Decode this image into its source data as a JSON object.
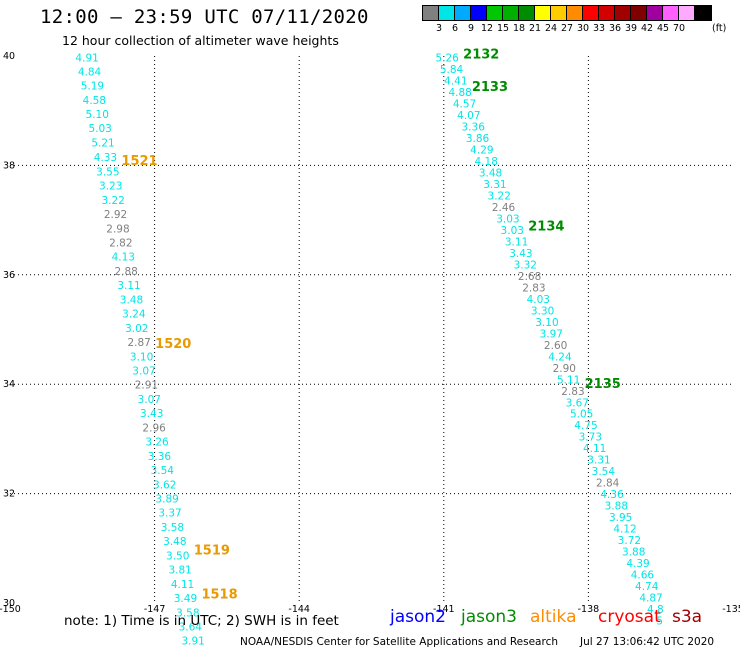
{
  "header": {
    "title": "12:00 – 23:59 UTC 07/11/2020",
    "subtitle": "12 hour collection of altimeter wave heights"
  },
  "legend": {
    "colors": [
      "#808080",
      "#00e5e5",
      "#00aaff",
      "#0000ff",
      "#00c800",
      "#00b000",
      "#008c00",
      "#ffff00",
      "#ffcc00",
      "#ff8c00",
      "#ff0000",
      "#d20000",
      "#a00000",
      "#800000",
      "#a000a0",
      "#ff60ff",
      "#ffaaff",
      "#000000"
    ],
    "labels": [
      "3",
      "6",
      "9",
      "12",
      "15",
      "18",
      "21",
      "24",
      "27",
      "30",
      "33",
      "36",
      "39",
      "42",
      "45",
      "70"
    ],
    "unit": "(ft)"
  },
  "axes": {
    "lon_labels": [
      "-150",
      "-147",
      "-144",
      "-141",
      "-138",
      "-135"
    ],
    "lat_labels": [
      "40",
      "38",
      "36",
      "34",
      "32",
      "30"
    ]
  },
  "tracks": [
    {
      "orbit_labels": [
        {
          "text": "1521",
          "lat": 38.1,
          "color": "#e89a00"
        },
        {
          "text": "1520",
          "lat": 34.75,
          "color": "#e89a00"
        },
        {
          "text": "1519",
          "lat": 30.98,
          "color": "#e89a00"
        },
        {
          "text": "1518",
          "lat": 30.17,
          "color": "#e89a00"
        }
      ],
      "points": [
        {
          "v": "4.91",
          "lon": -148.4,
          "lat": 39.97
        },
        {
          "v": "4.84",
          "lon": -148.35,
          "lat": 39.72
        },
        {
          "v": "5.19",
          "lon": -148.29,
          "lat": 39.46
        },
        {
          "v": "4.58",
          "lon": -148.25,
          "lat": 39.2
        },
        {
          "v": "5.10",
          "lon": -148.19,
          "lat": 38.94
        },
        {
          "v": "5.03",
          "lon": -148.13,
          "lat": 38.68
        },
        {
          "v": "5.21",
          "lon": -148.07,
          "lat": 38.42
        },
        {
          "v": "4.33",
          "lon": -148.02,
          "lat": 38.15
        },
        {
          "v": "3.55",
          "lon": -147.97,
          "lat": 37.89
        },
        {
          "v": "3.23",
          "lon": -147.91,
          "lat": 37.63
        },
        {
          "v": "3.22",
          "lon": -147.86,
          "lat": 37.37
        },
        {
          "v": "2.92",
          "lon": -147.81,
          "lat": 37.11
        },
        {
          "v": "2.98",
          "lon": -147.76,
          "lat": 36.85
        },
        {
          "v": "2.82",
          "lon": -147.7,
          "lat": 36.59
        },
        {
          "v": "4.13",
          "lon": -147.65,
          "lat": 36.33
        },
        {
          "v": "2.88",
          "lon": -147.59,
          "lat": 36.07
        },
        {
          "v": "3.11",
          "lon": -147.53,
          "lat": 35.81
        },
        {
          "v": "3.48",
          "lon": -147.48,
          "lat": 35.55
        },
        {
          "v": "3.24",
          "lon": -147.43,
          "lat": 35.29
        },
        {
          "v": "3.02",
          "lon": -147.37,
          "lat": 35.03
        },
        {
          "v": "2.87",
          "lon": -147.32,
          "lat": 34.77
        },
        {
          "v": "3.10",
          "lon": -147.27,
          "lat": 34.51
        },
        {
          "v": "3.07",
          "lon": -147.22,
          "lat": 34.25
        },
        {
          "v": "2.91",
          "lon": -147.17,
          "lat": 33.99
        },
        {
          "v": "3.07",
          "lon": -147.11,
          "lat": 33.73
        },
        {
          "v": "3.43",
          "lon": -147.06,
          "lat": 33.47
        },
        {
          "v": "2.96",
          "lon": -147.01,
          "lat": 33.21
        },
        {
          "v": "3.26",
          "lon": -146.95,
          "lat": 32.95
        },
        {
          "v": "3.36",
          "lon": -146.9,
          "lat": 32.69
        },
        {
          "v": "3.54",
          "lon": -146.84,
          "lat": 32.43
        },
        {
          "v": "3.62",
          "lon": -146.79,
          "lat": 32.17
        },
        {
          "v": "3.89",
          "lon": -146.74,
          "lat": 31.91
        },
        {
          "v": "3.37",
          "lon": -146.68,
          "lat": 31.65
        },
        {
          "v": "3.58",
          "lon": -146.63,
          "lat": 31.39
        },
        {
          "v": "3.48",
          "lon": -146.58,
          "lat": 31.13
        },
        {
          "v": "3.50",
          "lon": -146.52,
          "lat": 30.87
        },
        {
          "v": "3.81",
          "lon": -146.47,
          "lat": 30.61
        },
        {
          "v": "4.11",
          "lon": -146.42,
          "lat": 30.35
        },
        {
          "v": "3.49",
          "lon": -146.36,
          "lat": 30.09
        },
        {
          "v": "3.58",
          "lon": -146.31,
          "lat": 29.83
        },
        {
          "v": "3.64",
          "lon": -146.26,
          "lat": 29.57
        },
        {
          "v": "3.91",
          "lon": -146.2,
          "lat": 29.31
        }
      ]
    },
    {
      "orbit_labels": [
        {
          "text": "2132",
          "lat": 40.05,
          "color": "#008c00"
        },
        {
          "text": "2133",
          "lat": 39.45,
          "color": "#008c00"
        },
        {
          "text": "2134",
          "lat": 36.9,
          "color": "#008c00"
        },
        {
          "text": "2135",
          "lat": 34.02,
          "color": "#008c00"
        }
      ],
      "points": [
        {
          "v": "5.26",
          "lon": -140.93,
          "lat": 39.97
        },
        {
          "v": "5.84",
          "lon": -140.84,
          "lat": 39.76
        },
        {
          "v": "4.41",
          "lon": -140.75,
          "lat": 39.55
        },
        {
          "v": "4.88",
          "lon": -140.66,
          "lat": 39.34
        },
        {
          "v": "4.57",
          "lon": -140.57,
          "lat": 39.13
        },
        {
          "v": "4.07",
          "lon": -140.48,
          "lat": 38.92
        },
        {
          "v": "3.36",
          "lon": -140.39,
          "lat": 38.71
        },
        {
          "v": "3.86",
          "lon": -140.3,
          "lat": 38.5
        },
        {
          "v": "4.29",
          "lon": -140.21,
          "lat": 38.29
        },
        {
          "v": "4.18",
          "lon": -140.12,
          "lat": 38.08
        },
        {
          "v": "3.48",
          "lon": -140.03,
          "lat": 37.87
        },
        {
          "v": "3.31",
          "lon": -139.94,
          "lat": 37.66
        },
        {
          "v": "3.22",
          "lon": -139.85,
          "lat": 37.45
        },
        {
          "v": "2.46",
          "lon": -139.76,
          "lat": 37.24
        },
        {
          "v": "3.03",
          "lon": -139.67,
          "lat": 37.03
        },
        {
          "v": "3.03",
          "lon": -139.58,
          "lat": 36.82
        },
        {
          "v": "3.11",
          "lon": -139.49,
          "lat": 36.61
        },
        {
          "v": "3.43",
          "lon": -139.4,
          "lat": 36.4
        },
        {
          "v": "3.32",
          "lon": -139.31,
          "lat": 36.19
        },
        {
          "v": "2.68",
          "lon": -139.22,
          "lat": 35.98
        },
        {
          "v": "2.83",
          "lon": -139.13,
          "lat": 35.77
        },
        {
          "v": "4.03",
          "lon": -139.04,
          "lat": 35.56
        },
        {
          "v": "3.30",
          "lon": -138.95,
          "lat": 35.35
        },
        {
          "v": "3.10",
          "lon": -138.86,
          "lat": 35.14
        },
        {
          "v": "3.97",
          "lon": -138.77,
          "lat": 34.93
        },
        {
          "v": "2.60",
          "lon": -138.68,
          "lat": 34.72
        },
        {
          "v": "4.24",
          "lon": -138.59,
          "lat": 34.51
        },
        {
          "v": "2.90",
          "lon": -138.5,
          "lat": 34.3
        },
        {
          "v": "5.11",
          "lon": -138.41,
          "lat": 34.09
        },
        {
          "v": "2.83",
          "lon": -138.32,
          "lat": 33.88
        },
        {
          "v": "3.67",
          "lon": -138.23,
          "lat": 33.67
        },
        {
          "v": "5.05",
          "lon": -138.14,
          "lat": 33.46
        },
        {
          "v": "4.75",
          "lon": -138.05,
          "lat": 33.25
        },
        {
          "v": "3.73",
          "lon": -137.96,
          "lat": 33.04
        },
        {
          "v": "4.11",
          "lon": -137.87,
          "lat": 32.83
        },
        {
          "v": "3.31",
          "lon": -137.78,
          "lat": 32.62
        },
        {
          "v": "3.54",
          "lon": -137.69,
          "lat": 32.41
        },
        {
          "v": "2.84",
          "lon": -137.6,
          "lat": 32.2
        },
        {
          "v": "4.36",
          "lon": -137.51,
          "lat": 31.99
        },
        {
          "v": "3.88",
          "lon": -137.42,
          "lat": 31.78
        },
        {
          "v": "3.95",
          "lon": -137.33,
          "lat": 31.57
        },
        {
          "v": "4.12",
          "lon": -137.24,
          "lat": 31.36
        },
        {
          "v": "3.72",
          "lon": -137.15,
          "lat": 31.15
        },
        {
          "v": "3.88",
          "lon": -137.06,
          "lat": 30.94
        },
        {
          "v": "4.39",
          "lon": -136.97,
          "lat": 30.73
        },
        {
          "v": "4.66",
          "lon": -136.88,
          "lat": 30.52
        },
        {
          "v": "4.74",
          "lon": -136.79,
          "lat": 30.31
        },
        {
          "v": "4.87",
          "lon": -136.7,
          "lat": 30.1
        },
        {
          "v": "4.8",
          "lon": -136.61,
          "lat": 29.89
        },
        {
          "v": "5",
          "lon": -136.52,
          "lat": 29.68
        }
      ]
    }
  ],
  "footer": {
    "note": "note:  1) Time is in UTC;  2) SWH is in feet",
    "satellites": [
      {
        "name": "jason2",
        "color": "#0000ff"
      },
      {
        "name": "jason3",
        "color": "#008c00"
      },
      {
        "name": "altika",
        "color": "#ff8c00"
      },
      {
        "name": "cryosat",
        "color": "#ff0000"
      },
      {
        "name": "s3a",
        "color": "#a00000"
      }
    ],
    "credit": "NOAA/NESDIS Center for Satellite Applications and Research",
    "generated": "Jul 27 13:06:42 UTC 2020"
  }
}
